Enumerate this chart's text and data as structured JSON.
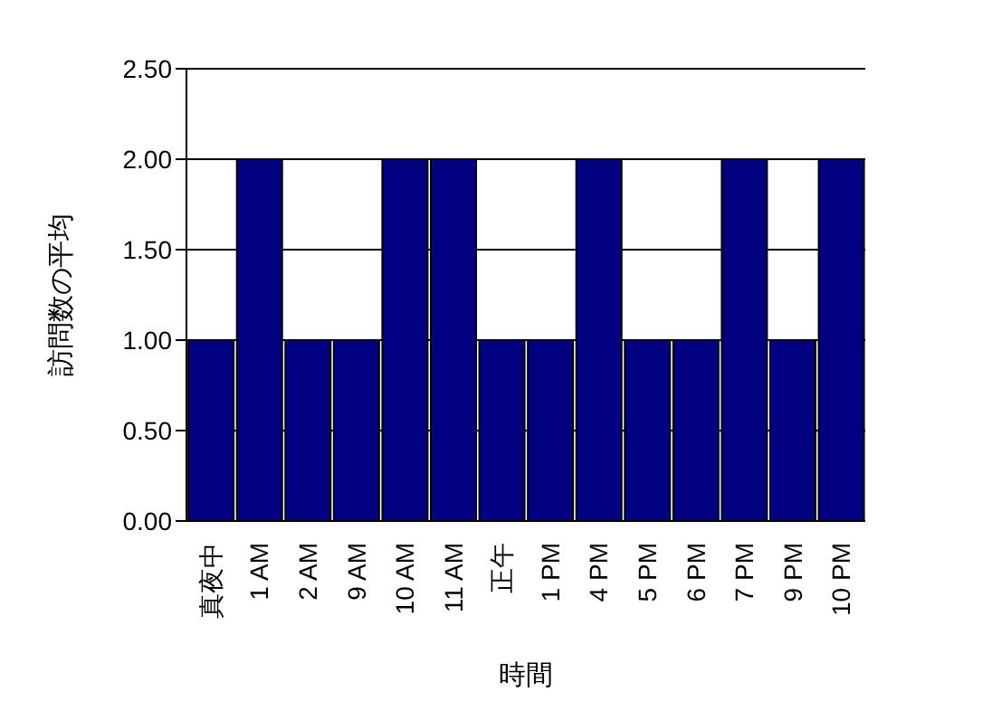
{
  "chart_data": {
    "type": "bar",
    "xlabel": "時間",
    "ylabel": "訪問数の平均",
    "categories": [
      "真夜中",
      "1 AM",
      "2 AM",
      "9 AM",
      "10 AM",
      "11 AM",
      "正午",
      "1 PM",
      "4 PM",
      "5 PM",
      "6 PM",
      "7 PM",
      "9 PM",
      "10 PM"
    ],
    "values": [
      1,
      2,
      1,
      1,
      2,
      2,
      1,
      1,
      2,
      1,
      1,
      2,
      1,
      2
    ],
    "color": "#000080",
    "ylim": [
      0,
      2.5
    ],
    "yticks": [
      {
        "value": 0,
        "label": "0.00"
      },
      {
        "value": 0.5,
        "label": "0.50"
      },
      {
        "value": 1,
        "label": "1.00"
      },
      {
        "value": 1.5,
        "label": "1.50"
      },
      {
        "value": 2,
        "label": "2.00"
      },
      {
        "value": 2.5,
        "label": "2.50"
      }
    ],
    "grid": "y"
  }
}
